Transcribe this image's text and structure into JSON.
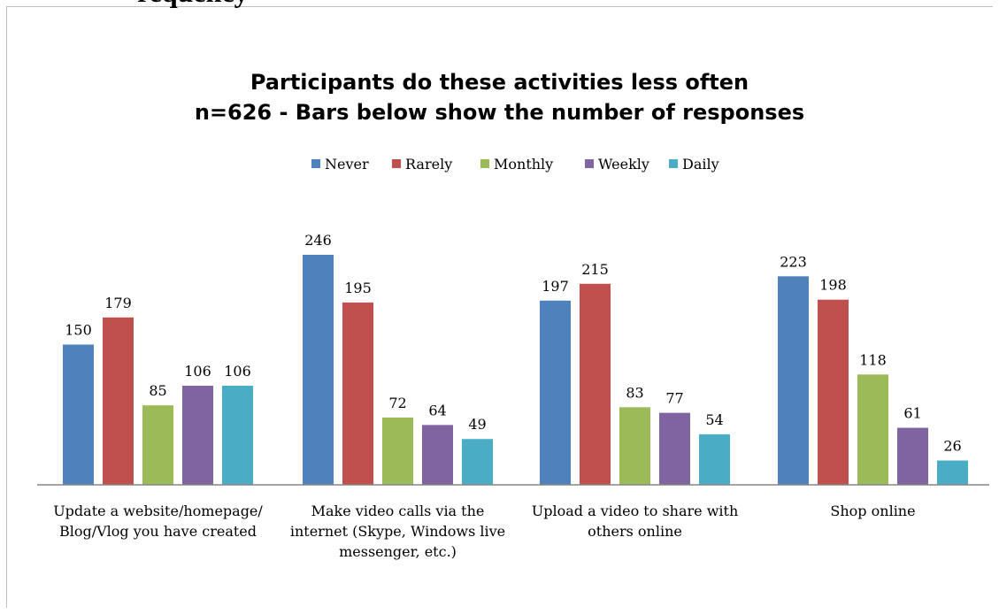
{
  "page": {
    "clipped_heading": "requency"
  },
  "chart_data": {
    "type": "bar",
    "title": "Participants do these activities less often",
    "subtitle": "n=626 - Bars below show the number of responses",
    "xlabel": "",
    "ylabel": "",
    "grid": false,
    "legend_position": "top",
    "categories": [
      [
        "Update a website/homepage/",
        "Blog/Vlog you have created"
      ],
      [
        "Make video calls via the",
        "internet (Skype, Windows live",
        "messenger, etc.)"
      ],
      [
        "Upload a video to share with",
        "others online"
      ],
      [
        "Shop online"
      ]
    ],
    "series": [
      {
        "name": "Never",
        "color": "#4f81bd",
        "values": [
          150,
          246,
          197,
          223
        ]
      },
      {
        "name": "Rarely",
        "color": "#c0504d",
        "values": [
          179,
          195,
          215,
          198
        ]
      },
      {
        "name": "Monthly",
        "color": "#9bbb59",
        "values": [
          85,
          72,
          83,
          118
        ]
      },
      {
        "name": "Weekly",
        "color": "#8064a2",
        "values": [
          106,
          64,
          77,
          61
        ]
      },
      {
        "name": "Daily",
        "color": "#4bacc6",
        "values": [
          106,
          49,
          54,
          26
        ]
      }
    ],
    "ylim": [
      0,
      246
    ]
  }
}
